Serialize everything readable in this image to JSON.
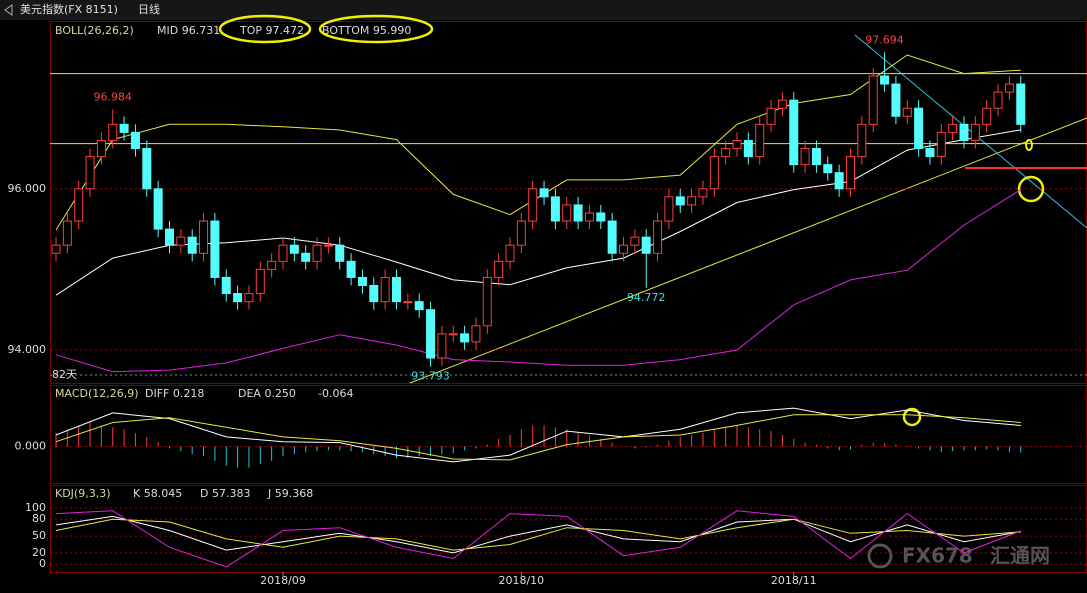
{
  "header": {
    "title": "美元指数(FX 8151)",
    "period": "日线"
  },
  "watermark": {
    "brand": "FX678",
    "name": "汇通网"
  },
  "chart_data": [
    {
      "type": "candlestick",
      "title": "BOLL(26,26,2)",
      "note": "82天",
      "up_color": "#ff3c3c",
      "down_color": "#54fcfc",
      "ylim": [
        93.59,
        98.07
      ],
      "yticks": [
        {
          "value": 96,
          "label": "96.000"
        },
        {
          "value": 94,
          "label": "94.000"
        }
      ],
      "grid": true,
      "hlines": [
        97.43,
        96.56
      ],
      "hline_color": "#e8e840",
      "categories": [
        null,
        null,
        null,
        null,
        null,
        null,
        null,
        null,
        null,
        null,
        null,
        null,
        null,
        null,
        null,
        null,
        null,
        null,
        null,
        null,
        "2018/09",
        null,
        null,
        null,
        null,
        null,
        null,
        null,
        null,
        null,
        null,
        null,
        null,
        null,
        null,
        null,
        null,
        null,
        null,
        null,
        null,
        "2018/10",
        null,
        null,
        null,
        null,
        null,
        null,
        null,
        null,
        null,
        null,
        null,
        null,
        null,
        null,
        null,
        null,
        null,
        null,
        null,
        null,
        null,
        null,
        null,
        "2018/11",
        null,
        null,
        null,
        null,
        null,
        null,
        null,
        null,
        null,
        null,
        null,
        null,
        null,
        null,
        null,
        null,
        null,
        null,
        null,
        null
      ],
      "open": [
        95.2,
        95.3,
        95.6,
        96.0,
        96.4,
        96.6,
        96.8,
        96.7,
        96.5,
        96.0,
        95.5,
        95.3,
        95.4,
        95.2,
        95.6,
        94.9,
        94.7,
        94.6,
        94.7,
        95.0,
        95.1,
        95.3,
        95.2,
        95.1,
        95.3,
        95.3,
        95.1,
        94.9,
        94.8,
        94.6,
        94.9,
        94.6,
        94.6,
        94.5,
        93.9,
        94.2,
        94.2,
        94.1,
        94.3,
        94.9,
        95.1,
        95.3,
        95.6,
        96.0,
        95.9,
        95.6,
        95.8,
        95.6,
        95.7,
        95.6,
        95.2,
        95.3,
        95.4,
        95.2,
        95.6,
        95.9,
        95.8,
        95.9,
        96.0,
        96.4,
        96.5,
        96.6,
        96.4,
        96.8,
        97.0,
        97.1,
        96.3,
        96.5,
        96.3,
        96.2,
        96.0,
        96.4,
        96.8,
        97.4,
        97.3,
        96.9,
        97.0,
        96.5,
        96.4,
        96.7,
        96.8,
        96.6,
        96.8,
        97.0,
        97.2,
        97.3
      ],
      "high": [
        95.4,
        95.7,
        96.1,
        96.5,
        96.7,
        96.984,
        96.9,
        96.8,
        96.6,
        96.1,
        95.6,
        95.5,
        95.5,
        95.7,
        95.7,
        95.0,
        94.8,
        94.8,
        95.1,
        95.2,
        95.4,
        95.4,
        95.3,
        95.4,
        95.4,
        95.4,
        95.2,
        95.0,
        94.9,
        95.0,
        95.0,
        94.7,
        94.7,
        94.6,
        94.3,
        94.3,
        94.3,
        94.4,
        95.0,
        95.2,
        95.4,
        95.7,
        96.1,
        96.1,
        96.0,
        95.9,
        95.9,
        95.8,
        95.8,
        95.7,
        95.4,
        95.5,
        95.5,
        95.7,
        96.0,
        96.0,
        96.0,
        96.1,
        96.5,
        96.6,
        96.7,
        96.7,
        96.9,
        97.1,
        97.2,
        97.2,
        96.6,
        96.6,
        96.4,
        96.3,
        96.5,
        96.9,
        97.5,
        97.694,
        97.4,
        97.1,
        97.1,
        96.6,
        96.8,
        96.9,
        96.9,
        96.9,
        97.1,
        97.3,
        97.4,
        97.4
      ],
      "low": [
        95.1,
        95.2,
        95.5,
        95.9,
        96.3,
        96.5,
        96.6,
        96.4,
        95.9,
        95.4,
        95.2,
        95.2,
        95.1,
        95.1,
        94.8,
        94.6,
        94.5,
        94.5,
        94.6,
        94.9,
        95.0,
        95.1,
        95.0,
        95.0,
        95.2,
        95.0,
        94.8,
        94.7,
        94.5,
        94.5,
        94.5,
        94.5,
        94.4,
        93.793,
        93.8,
        94.1,
        94.0,
        94.0,
        94.2,
        94.8,
        95.0,
        95.2,
        95.5,
        95.8,
        95.5,
        95.5,
        95.5,
        95.5,
        95.5,
        95.1,
        95.1,
        95.2,
        94.772,
        95.1,
        95.5,
        95.7,
        95.7,
        95.8,
        95.9,
        96.3,
        96.4,
        96.3,
        96.3,
        96.7,
        96.9,
        96.2,
        96.2,
        96.2,
        96.1,
        95.9,
        95.9,
        96.3,
        96.7,
        97.2,
        96.8,
        96.8,
        96.4,
        96.3,
        96.3,
        96.6,
        96.5,
        96.5,
        96.7,
        96.9,
        97.1,
        96.7
      ],
      "close": [
        95.3,
        95.6,
        96.0,
        96.4,
        96.6,
        96.8,
        96.7,
        96.5,
        96.0,
        95.5,
        95.3,
        95.4,
        95.2,
        95.6,
        94.9,
        94.7,
        94.6,
        94.7,
        95.0,
        95.1,
        95.3,
        95.2,
        95.1,
        95.3,
        95.3,
        95.1,
        94.9,
        94.8,
        94.6,
        94.9,
        94.6,
        94.6,
        94.5,
        93.9,
        94.2,
        94.2,
        94.1,
        94.3,
        94.9,
        95.1,
        95.3,
        95.6,
        96.0,
        95.9,
        95.6,
        95.8,
        95.6,
        95.7,
        95.6,
        95.2,
        95.3,
        95.4,
        95.2,
        95.6,
        95.9,
        95.8,
        95.9,
        96.0,
        96.4,
        96.5,
        96.6,
        96.4,
        96.8,
        97.0,
        97.1,
        96.3,
        96.5,
        96.3,
        96.2,
        96.0,
        96.4,
        96.8,
        97.4,
        97.3,
        96.9,
        97.0,
        96.5,
        96.4,
        96.7,
        96.8,
        96.6,
        96.8,
        97.0,
        97.2,
        97.3,
        96.8
      ],
      "annotations": [
        {
          "value": 96.984,
          "label": "96.984"
        },
        {
          "value": 97.694,
          "label": "97.694"
        },
        {
          "value": 93.793,
          "label": "93.793"
        },
        {
          "value": 94.772,
          "label": "94.772"
        }
      ],
      "x": [
        0,
        5,
        10,
        15,
        20,
        25,
        30,
        35,
        40,
        45,
        50,
        55,
        60,
        65,
        70,
        75,
        80,
        85
      ],
      "series": [
        {
          "name": "MID 96.731",
          "color": "#ffffff",
          "values": [
            94.68,
            95.14,
            95.3,
            95.33,
            95.39,
            95.3,
            95.09,
            94.87,
            94.81,
            95.02,
            95.14,
            95.47,
            95.83,
            95.99,
            96.09,
            96.48,
            96.61,
            96.731
          ]
        },
        {
          "name": "TOP 97.472",
          "color": "#e8e840",
          "values": [
            95.49,
            96.61,
            96.8,
            96.8,
            96.77,
            96.73,
            96.61,
            95.93,
            95.68,
            96.11,
            96.11,
            96.17,
            96.8,
            97.06,
            97.17,
            97.66,
            97.43,
            97.472
          ]
        },
        {
          "name": "BOTTOM 95.990",
          "color": "#e020e0",
          "values": [
            93.94,
            93.73,
            93.75,
            93.84,
            94.02,
            94.19,
            94.06,
            93.88,
            93.85,
            93.81,
            93.81,
            93.88,
            94.0,
            94.56,
            94.87,
            94.99,
            95.55,
            95.99
          ]
        }
      ]
    },
    {
      "type": "macd",
      "title": "MACD(12,26,9)",
      "ylim": [
        -0.38,
        0.64
      ],
      "yticks": [
        {
          "value": 0,
          "label": "0.000"
        }
      ],
      "grid": true,
      "x": [
        0,
        5,
        10,
        15,
        20,
        25,
        30,
        35,
        40,
        45,
        50,
        55,
        60,
        65,
        70,
        75,
        80,
        85
      ],
      "series": [
        {
          "name": "DIFF 0.218",
          "color": "#ffffff",
          "values": [
            0.12,
            0.35,
            0.29,
            0.1,
            0.05,
            0.04,
            -0.09,
            -0.16,
            -0.09,
            0.16,
            0.1,
            0.18,
            0.35,
            0.4,
            0.29,
            0.38,
            0.27,
            0.218
          ]
        },
        {
          "name": "DEA 0.250",
          "color": "#e8e840",
          "values": [
            0.05,
            0.25,
            0.3,
            0.2,
            0.1,
            0.06,
            -0.02,
            -0.13,
            -0.14,
            0.02,
            0.1,
            0.12,
            0.22,
            0.33,
            0.33,
            0.33,
            0.3,
            0.25
          ]
        }
      ],
      "histogram": {
        "name": "-0.064",
        "up_color": "#ff3c3c",
        "down_color": "#20c8d8",
        "values": [
          0.14,
          0.18,
          0.22,
          0.25,
          0.22,
          0.2,
          0.18,
          0.14,
          0.1,
          0.05,
          -0.02,
          -0.05,
          -0.08,
          -0.1,
          -0.15,
          -0.2,
          -0.22,
          -0.22,
          -0.18,
          -0.15,
          -0.1,
          -0.08,
          -0.06,
          -0.05,
          -0.04,
          -0.04,
          -0.05,
          -0.06,
          -0.08,
          -0.1,
          -0.12,
          -0.12,
          -0.1,
          -0.1,
          -0.08,
          -0.07,
          -0.04,
          -0.02,
          0.02,
          0.08,
          0.12,
          0.18,
          0.22,
          0.22,
          0.2,
          0.18,
          0.15,
          0.12,
          0.08,
          0.04,
          0.0,
          -0.02,
          -0.01,
          0.02,
          0.06,
          0.1,
          0.12,
          0.14,
          0.18,
          0.2,
          0.22,
          0.2,
          0.18,
          0.16,
          0.12,
          0.08,
          0.04,
          0.02,
          -0.02,
          -0.04,
          -0.03,
          0.02,
          0.04,
          0.03,
          0.02,
          0.01,
          -0.02,
          -0.04,
          -0.06,
          -0.05,
          -0.04,
          -0.04,
          -0.03,
          -0.04,
          -0.06,
          -0.064
        ]
      }
    },
    {
      "type": "line",
      "title": "KDJ(9,3,3)",
      "ylim": [
        -14,
        141
      ],
      "yticks": [
        0,
        20,
        50,
        80,
        100
      ],
      "grid": true,
      "x": [
        0,
        5,
        10,
        15,
        20,
        25,
        30,
        35,
        40,
        45,
        50,
        55,
        60,
        65,
        70,
        75,
        80,
        85
      ],
      "series": [
        {
          "name": "K 58.045",
          "color": "#ffffff",
          "values": [
            70,
            85,
            60,
            25,
            40,
            55,
            40,
            20,
            50,
            70,
            45,
            40,
            75,
            80,
            40,
            70,
            40,
            58.045
          ]
        },
        {
          "name": "D 57.383",
          "color": "#e8e840",
          "values": [
            60,
            80,
            75,
            45,
            30,
            50,
            45,
            25,
            35,
            65,
            60,
            45,
            65,
            80,
            55,
            60,
            50,
            57.383
          ]
        },
        {
          "name": "J 59.368",
          "color": "#e020e0",
          "values": [
            90,
            95,
            30,
            -5,
            60,
            65,
            30,
            10,
            90,
            85,
            15,
            30,
            95,
            85,
            10,
            90,
            20,
            59.368
          ]
        }
      ]
    }
  ]
}
